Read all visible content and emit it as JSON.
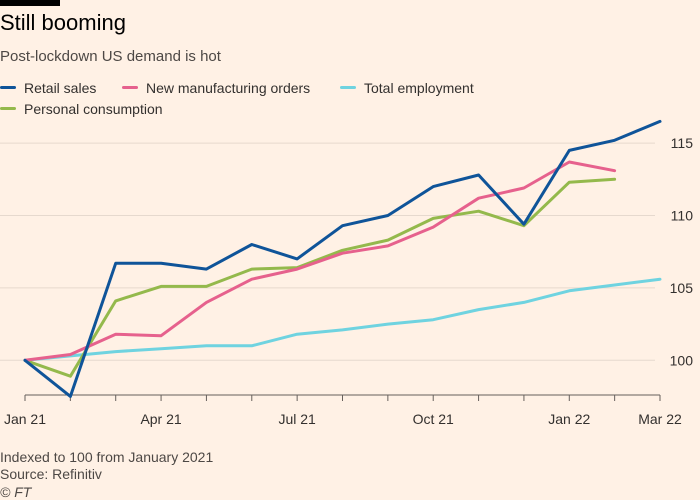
{
  "header": {
    "title": "Still booming",
    "subtitle": "Post-lockdown US demand is hot"
  },
  "footer": {
    "note": "Indexed to 100 from January 2021",
    "source": "Source: Refinitiv",
    "credit": "© FT"
  },
  "chart_data": {
    "type": "line",
    "x": [
      "2021-01",
      "2021-02",
      "2021-03",
      "2021-04",
      "2021-05",
      "2021-06",
      "2021-07",
      "2021-08",
      "2021-09",
      "2021-10",
      "2021-11",
      "2021-12",
      "2022-01",
      "2022-02",
      "2022-03"
    ],
    "x_tick_labels": [
      "Jan 21",
      "Apr 21",
      "Jul 21",
      "Oct 21",
      "Jan 22",
      "Mar 22"
    ],
    "x_tick_indices": [
      0,
      3,
      6,
      9,
      12,
      14
    ],
    "y_ticks": [
      100,
      105,
      110,
      115
    ],
    "ylim": [
      97.6,
      116.6
    ],
    "grid": true,
    "series": [
      {
        "name": "Retail sales",
        "color": "#0f5499",
        "values": [
          100,
          97.5,
          106.7,
          106.7,
          106.3,
          108.0,
          107.0,
          109.3,
          110.0,
          112.0,
          112.8,
          109.4,
          114.5,
          115.2,
          116.5
        ]
      },
      {
        "name": "New manufacturing orders",
        "color": "#e6618d",
        "values": [
          100,
          100.4,
          101.8,
          101.7,
          104.0,
          105.6,
          106.3,
          107.4,
          107.9,
          109.2,
          111.2,
          111.9,
          113.7,
          113.1,
          null
        ]
      },
      {
        "name": "Total employment",
        "color": "#6fd3e0",
        "values": [
          100,
          100.3,
          100.6,
          100.8,
          101.0,
          101.0,
          101.8,
          102.1,
          102.5,
          102.8,
          103.5,
          104.0,
          104.8,
          105.2,
          105.6
        ]
      },
      {
        "name": "Personal consumption",
        "color": "#94b94c",
        "values": [
          100,
          98.9,
          104.1,
          105.1,
          105.1,
          106.3,
          106.4,
          107.6,
          108.3,
          109.8,
          110.3,
          109.3,
          112.3,
          112.5,
          null
        ]
      }
    ]
  }
}
